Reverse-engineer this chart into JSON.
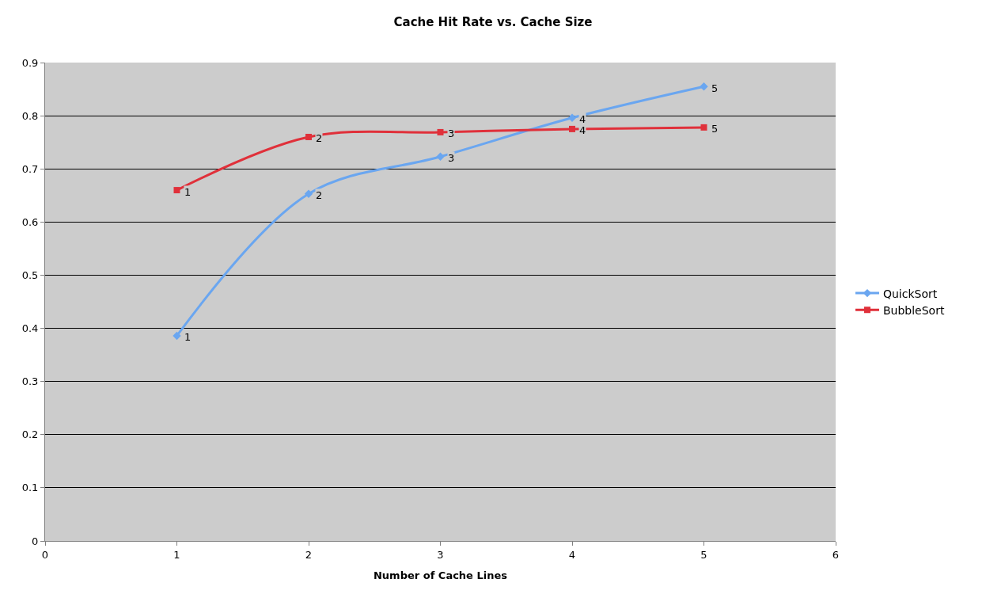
{
  "chart_data": {
    "type": "line",
    "title": "Cache Hit Rate vs. Cache Size",
    "xlabel": "Number of Cache Lines",
    "x": [
      1,
      2,
      3,
      4,
      5
    ],
    "series": [
      {
        "name": "QuickSort",
        "color": "#6aa6f0",
        "marker": "diamond",
        "values": [
          0.386,
          0.653,
          0.723,
          0.796,
          0.855
        ]
      },
      {
        "name": "BubbleSort",
        "color": "#e0303a",
        "marker": "square",
        "values": [
          0.66,
          0.76,
          0.769,
          0.775,
          0.778
        ]
      }
    ],
    "annotations": [
      {
        "text": "1",
        "x": 1,
        "y": 0.386
      },
      {
        "text": "2",
        "x": 2,
        "y": 0.653
      },
      {
        "text": "3",
        "x": 3,
        "y": 0.723
      },
      {
        "text": "4",
        "x": 4,
        "y": 0.796
      },
      {
        "text": "5",
        "x": 5,
        "y": 0.855
      },
      {
        "text": "1",
        "x": 1,
        "y": 0.66
      },
      {
        "text": "2",
        "x": 2,
        "y": 0.76
      },
      {
        "text": "3",
        "x": 3,
        "y": 0.769
      },
      {
        "text": "4",
        "x": 4,
        "y": 0.775
      },
      {
        "text": "5",
        "x": 5,
        "y": 0.778
      }
    ],
    "xlim": [
      0,
      6
    ],
    "xticks": [
      0,
      1,
      2,
      3,
      4,
      5,
      6
    ],
    "ylim": [
      0,
      0.9
    ],
    "yticks": [
      0,
      0.1,
      0.2,
      0.3,
      0.4,
      0.5,
      0.6,
      0.7,
      0.8,
      0.9
    ],
    "grid": "y",
    "legend": "right"
  }
}
